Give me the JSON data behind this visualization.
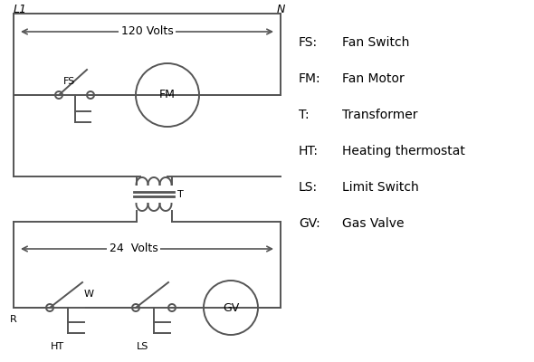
{
  "bg_color": "#ffffff",
  "line_color": "#555555",
  "text_color": "#000000",
  "legend": {
    "FS": "Fan Switch",
    "FM": "Fan Motor",
    "T": "Transformer",
    "HT": "Heating thermostat",
    "LS": "Limit Switch",
    "GV": "Gas Valve"
  }
}
